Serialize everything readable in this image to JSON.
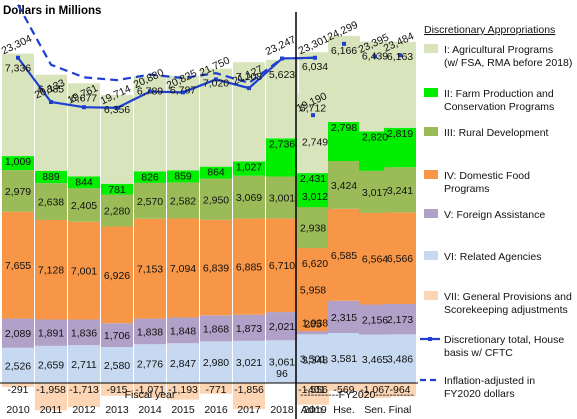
{
  "chart_data": {
    "type": "bar",
    "ylabel": "Dollars in Millions",
    "xlabel": "Fiscal year",
    "fy2020_label": "-----------FY2020-----------",
    "legend_title": "Discretionary Appropriations",
    "categories": [
      "2010",
      "2011",
      "2012",
      "2013",
      "2014",
      "2015",
      "2016",
      "2017",
      "2018",
      "2019",
      "Adm.",
      "Hse.",
      "Sen.",
      "Final"
    ],
    "series": [
      {
        "key": "vi",
        "name": "VI: Related Agencies",
        "color": "#c6d9f0",
        "values": [
          2526,
          2659,
          2711,
          2580,
          2776,
          2847,
          2980,
          3021,
          3061,
          3348,
          3501,
          3581,
          3465,
          3486
        ]
      },
      {
        "key": "v",
        "name": "V: Foreign Assistance",
        "color": "#b1a0c7",
        "values": [
          2089,
          1891,
          1836,
          1706,
          1838,
          1848,
          1868,
          1873,
          2021,
          1938,
          205,
          2315,
          2156,
          2173
        ]
      },
      {
        "key": "iv",
        "name": "IV: Domestic Food Programs",
        "color": "#f79646",
        "values": [
          7655,
          7128,
          7001,
          6926,
          7153,
          7094,
          6839,
          6885,
          6710,
          6620,
          5958,
          6585,
          6564,
          6566
        ]
      },
      {
        "key": "iii",
        "name": "III: Rural Development",
        "color": "#9bbb59",
        "values": [
          2979,
          2638,
          2405,
          2280,
          2570,
          2582,
          2950,
          3069,
          3001,
          3012,
          2938,
          3424,
          3017,
          3241
        ]
      },
      {
        "key": "ii",
        "name": "II: Farm Production and Conservation Programs",
        "color": "#00ee00",
        "values": [
          1009,
          889,
          844,
          781,
          826,
          859,
          864,
          1027,
          2736,
          2749,
          2431,
          2798,
          2820,
          2819
        ]
      },
      {
        "key": "i",
        "name": "I: Agricultural Programs (w/ FSA, RMA before 2018)",
        "color": "#d8e4bc",
        "values": [
          7336,
          6885,
          6677,
          6356,
          6789,
          6787,
          7020,
          7108,
          5623,
          6034,
          5712,
          6166,
          6439,
          6163
        ]
      },
      {
        "key": "vii",
        "name": "VII: General Provisions and Scorekeeping adjustments",
        "color": "#fcd5b4",
        "values": [
          -291,
          -1958,
          -1713,
          -915,
          -1071,
          -1193,
          -771,
          -1856,
          96,
          -401,
          -1556,
          -569,
          -1067,
          -964
        ]
      }
    ],
    "lines": [
      {
        "key": "total",
        "name": "Discretionary total, House basis w/ CFTC",
        "color": "#1f3fd0",
        "style": "solid",
        "values": [
          23304,
          20133,
          19761,
          19714,
          20880,
          20825,
          21750,
          21127,
          23247,
          23301,
          19190,
          24299,
          23395,
          23484
        ]
      },
      {
        "key": "inflation",
        "name": "Inflation-adjusted in FY2020 dollars",
        "color": "#1f3fd0",
        "style": "dashed",
        "values": [
          27100,
          22800,
          21900,
          21700,
          22100,
          21850,
          22200,
          21500,
          23250,
          23301,
          null,
          null,
          null,
          null
        ]
      }
    ],
    "total_labels": [
      "23,304",
      "20,133",
      "19,761",
      "19,714",
      "20,880",
      "20,825",
      "21,750",
      "21,127",
      "23,247",
      "23,301",
      "19,190",
      "24,299",
      "23,395",
      "23,484"
    ],
    "segment_labels": {
      "vi": [
        "2,526",
        "2,659",
        "2,711",
        "2,580",
        "2,776",
        "2,847",
        "2,980",
        "3,021",
        "3,061",
        "3,348",
        "3,501",
        "3,581",
        "3,465",
        "3,486"
      ],
      "v": [
        "2,089",
        "1,891",
        "1,836",
        "1,706",
        "1,838",
        "1,848",
        "1,868",
        "1,873",
        "2,021",
        "1,938",
        "205",
        "2,315",
        "2,156",
        "2,173"
      ],
      "iv": [
        "7,655",
        "7,128",
        "7,001",
        "6,926",
        "7,153",
        "7,094",
        "6,839",
        "6,885",
        "6,710",
        "6,620",
        "5,958",
        "6,585",
        "6,564",
        "6,566"
      ],
      "iii": [
        "2,979",
        "2,638",
        "2,405",
        "2,280",
        "2,570",
        "2,582",
        "2,950",
        "3,069",
        "3,001",
        "3,012",
        "2,938",
        "3,424",
        "3,017",
        "3,241"
      ],
      "ii": [
        "1,009",
        "889",
        "844",
        "781",
        "826",
        "859",
        "864",
        "1,027",
        "2,736",
        "2,749",
        "2,431",
        "2,798",
        "2,820",
        "2,819"
      ],
      "i": [
        "7,336",
        "6,885",
        "6,677",
        "6,356",
        "6,789",
        "6,787",
        "7,020",
        "7,108",
        "5,623",
        "6,034",
        "5,712",
        "6,166",
        "6,439",
        "6,163"
      ],
      "vii": [
        "-291",
        "-1,958",
        "-1,713",
        "-915",
        "-1,071",
        "-1,193",
        "-771",
        "-1,856",
        "96",
        "-401",
        "-1,556",
        "-569",
        "-1,067",
        "-964"
      ]
    },
    "ylim": [
      -2600,
      29000
    ],
    "legend_position": "right",
    "grid": false
  }
}
